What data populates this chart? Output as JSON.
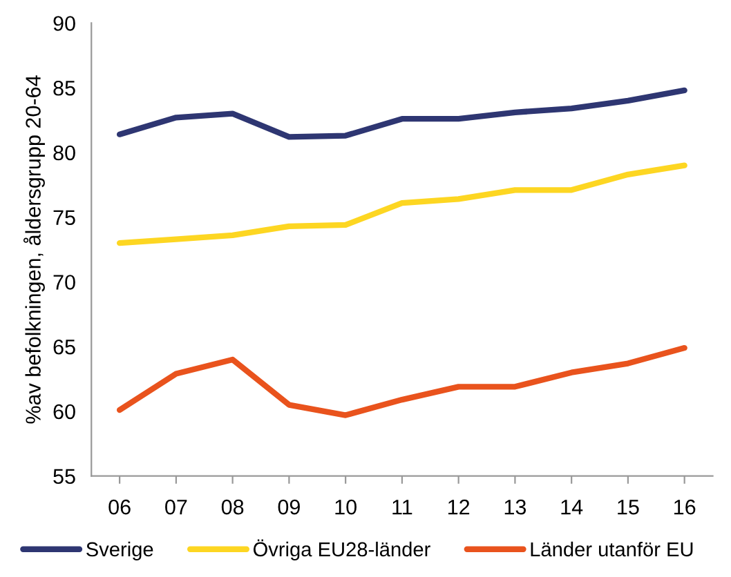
{
  "chart_data": {
    "type": "line",
    "ylabel": "%av befolkningen, åldersgrupp 20-64",
    "categories": [
      "06",
      "07",
      "08",
      "09",
      "10",
      "11",
      "12",
      "13",
      "14",
      "15",
      "16"
    ],
    "series": [
      {
        "name": "Sverige",
        "color": "#2e3672",
        "values": [
          81.4,
          82.7,
          83.0,
          81.2,
          81.3,
          82.6,
          82.6,
          83.1,
          83.4,
          84.0,
          84.8
        ]
      },
      {
        "name": "Övriga EU28-länder",
        "color": "#fdd622",
        "values": [
          73.0,
          73.3,
          73.6,
          74.3,
          74.4,
          76.1,
          76.4,
          77.1,
          77.1,
          78.3,
          79.0
        ]
      },
      {
        "name": "Länder utanför EU",
        "color": "#e9531d",
        "values": [
          60.1,
          62.9,
          64.0,
          60.5,
          59.7,
          60.9,
          61.9,
          61.9,
          63.0,
          63.7,
          64.9
        ]
      }
    ],
    "ylim": [
      55,
      90
    ],
    "yticks": [
      55,
      60,
      65,
      70,
      75,
      80,
      85,
      90
    ],
    "grid": false,
    "legend": "bottom",
    "marker": "none",
    "line_style": "solid"
  }
}
